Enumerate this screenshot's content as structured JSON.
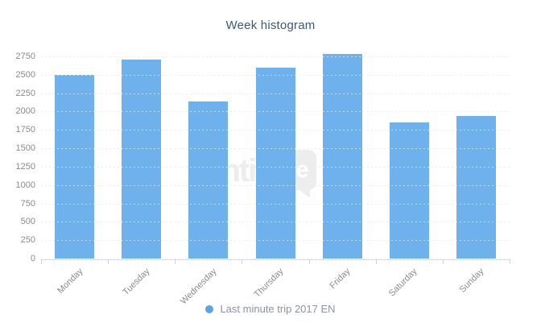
{
  "title": "Week histogram",
  "watermark": {
    "text_left": "senti",
    "text_right": "one"
  },
  "legend": {
    "items": [
      {
        "label": "Last minute trip 2017 EN",
        "color": "#57a5e8"
      }
    ]
  },
  "colors": {
    "bar": "#6fb1ec",
    "title_text": "#3b5a78",
    "axis_label": "#8a8a8a",
    "legend_text": "#8b95a1",
    "gridline": "#d4d4d4",
    "axis_line": "#d9dce1",
    "watermark": "#ededed"
  },
  "chart_data": {
    "type": "bar",
    "title": "Week histogram",
    "categories": [
      "Monday",
      "Tuesday",
      "Wednesday",
      "Thursday",
      "Friday",
      "Saturday",
      "Sunday"
    ],
    "series": [
      {
        "name": "Last minute trip 2017 EN",
        "values": [
          2500,
          2710,
          2140,
          2600,
          2780,
          1850,
          1940
        ]
      }
    ],
    "xlabel": "",
    "ylabel": "",
    "ylim": [
      0,
      2750
    ],
    "ytick_step": 250,
    "ytick_labels": [
      "0",
      "250",
      "500",
      "750",
      "1000",
      "1250",
      "1500",
      "1750",
      "2000",
      "2250",
      "2500",
      "2750"
    ],
    "grid": "horizontal-dotted",
    "legend_position": "bottom",
    "x_label_rotation_deg": -45
  }
}
